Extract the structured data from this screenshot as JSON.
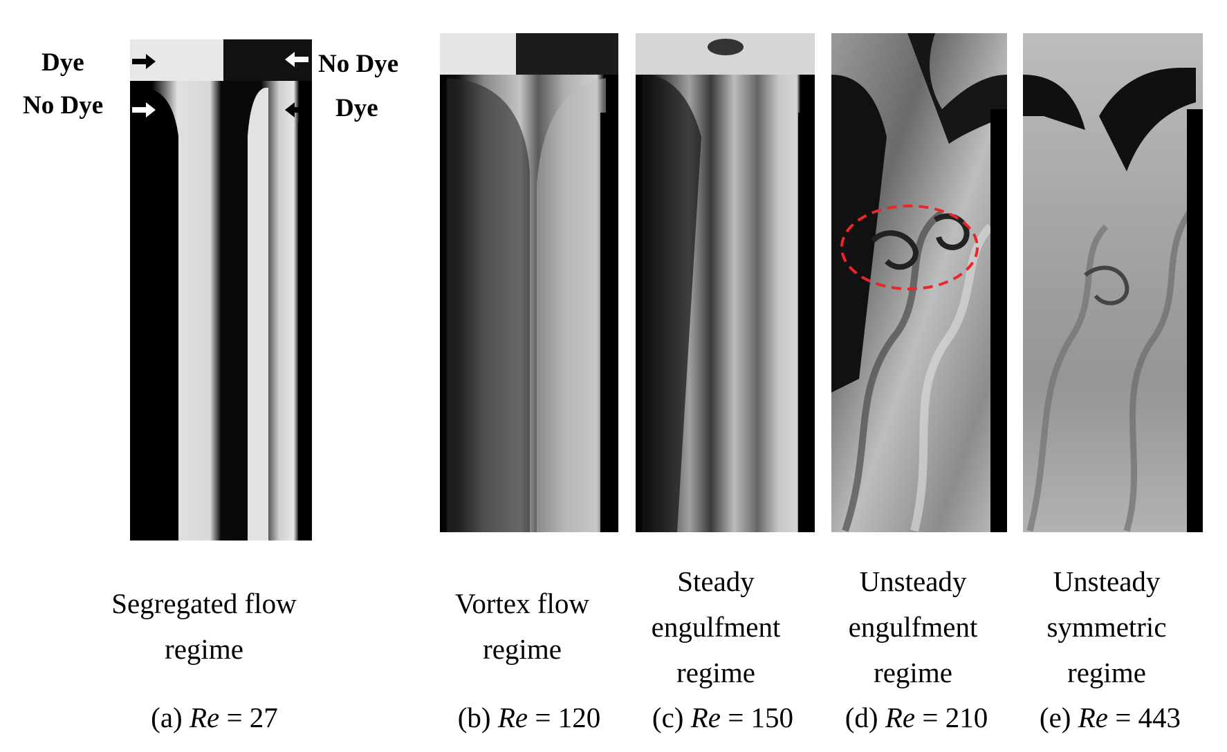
{
  "labels": {
    "top_left": "Dye",
    "bottom_left": "No Dye",
    "top_right": "No Dye",
    "bottom_right": "Dye"
  },
  "panels": [
    {
      "regime_lines": [
        "Segregated flow",
        "regime"
      ],
      "letter": "(a)",
      "re_symbol": "Re",
      "re_value": "= 27"
    },
    {
      "regime_lines": [
        "Vortex flow",
        "regime"
      ],
      "letter": "(b)",
      "re_symbol": "Re",
      "re_value": "= 120"
    },
    {
      "regime_lines": [
        "Steady",
        "engulfment",
        "regime"
      ],
      "letter": "(c)",
      "re_symbol": "Re",
      "re_value": "= 150"
    },
    {
      "regime_lines": [
        "Unsteady",
        "engulfment",
        "regime"
      ],
      "letter": "(d)",
      "re_symbol": "Re",
      "re_value": "= 210"
    },
    {
      "regime_lines": [
        "Unsteady",
        "symmetric",
        "regime"
      ],
      "letter": "(e)",
      "re_symbol": "Re",
      "re_value": "= 443"
    }
  ],
  "colors": {
    "dyed_fluid": "#0b0b0b",
    "clear_fluid": "#d9d9d9",
    "wall": "#050505",
    "highlight_ellipse": "#e8262b"
  },
  "icons": {
    "arrow_right_black": "arrow-right-icon",
    "arrow_left_white": "arrow-left-icon"
  }
}
